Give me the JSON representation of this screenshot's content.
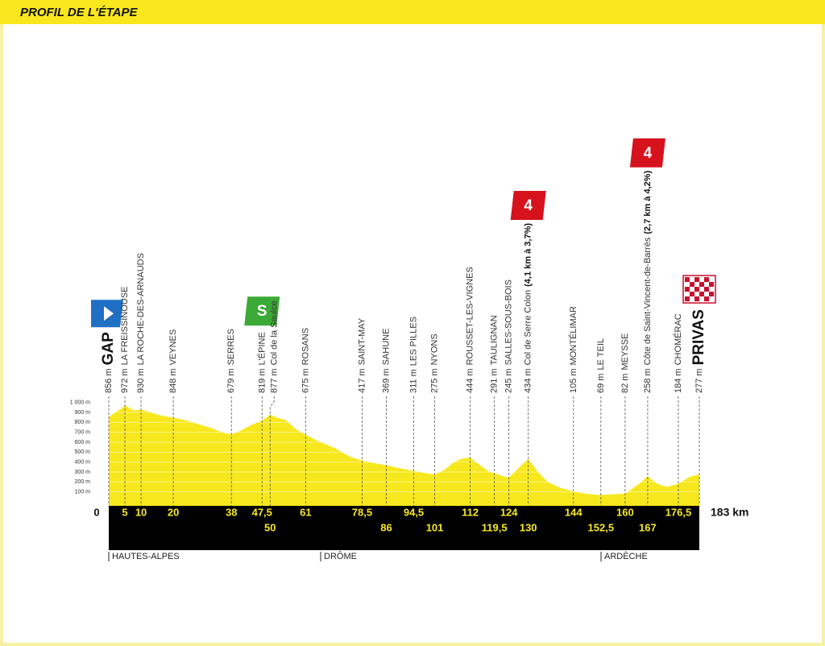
{
  "header": {
    "title": "PROFIL DE L'ÉTAPE"
  },
  "chart_data": {
    "type": "area",
    "color": "#f7e81e",
    "x": [
      0,
      2,
      4,
      5,
      6,
      8,
      10,
      13,
      16,
      20,
      24,
      28,
      32,
      35,
      38,
      41,
      44,
      47.5,
      50,
      52,
      55,
      58,
      61,
      65,
      70,
      75,
      78.5,
      82,
      86,
      90,
      94.5,
      98,
      101,
      104,
      107,
      110,
      112,
      115,
      118,
      119.5,
      122,
      124,
      127,
      130,
      133,
      136,
      140,
      144,
      148,
      152.5,
      156,
      160,
      163,
      165,
      167,
      170,
      173,
      176.5,
      180,
      183
    ],
    "values": [
      856,
      900,
      940,
      972,
      950,
      920,
      930,
      900,
      870,
      848,
      820,
      780,
      740,
      700,
      679,
      720,
      770,
      819,
      877,
      850,
      820,
      730,
      675,
      610,
      540,
      450,
      417,
      390,
      369,
      340,
      311,
      290,
      275,
      320,
      400,
      440,
      444,
      370,
      300,
      291,
      260,
      245,
      340,
      434,
      300,
      200,
      140,
      105,
      80,
      69,
      75,
      82,
      150,
      200,
      258,
      180,
      150,
      184,
      250,
      277
    ],
    "xlim": [
      0,
      183
    ],
    "ylim": [
      0,
      1000
    ],
    "yticks": [
      {
        "value": 100,
        "label": "100 m"
      },
      {
        "value": 200,
        "label": "200 m"
      },
      {
        "value": 300,
        "label": "300 m"
      },
      {
        "value": 400,
        "label": "400 m"
      },
      {
        "value": 500,
        "label": "500 m"
      },
      {
        "value": 600,
        "label": "600 m"
      },
      {
        "value": 700,
        "label": "700 m"
      },
      {
        "value": 800,
        "label": "800 m"
      },
      {
        "value": 900,
        "label": "900 m"
      },
      {
        "value": 1000,
        "label": "1 000 m"
      }
    ],
    "xticks": [
      0,
      5,
      10,
      20,
      38,
      {
        "value": 47.5,
        "label": "47,5"
      },
      50,
      61,
      {
        "value": 78.5,
        "label": "78,5"
      },
      86,
      {
        "value": 94.5,
        "label": "94,5"
      },
      101,
      112,
      {
        "value": 119.5,
        "label": "119,5"
      },
      124,
      130,
      144,
      {
        "value": 152.5,
        "label": "152,5"
      },
      160,
      167,
      {
        "value": 176.5,
        "label": "176,5"
      },
      {
        "value": 183,
        "label": "183 km"
      }
    ],
    "grid": true,
    "waypoints": {
      "x": [
        0,
        5,
        10,
        20,
        38,
        47.5,
        50,
        61,
        78.5,
        86,
        94.5,
        101,
        112,
        119.5,
        124,
        130,
        144,
        152.5,
        160,
        167,
        176.5,
        183
      ],
      "values": [
        856,
        972,
        930,
        848,
        679,
        819,
        877,
        675,
        417,
        369,
        311,
        275,
        444,
        291,
        245,
        434,
        105,
        69,
        82,
        258,
        184,
        277
      ],
      "value_labels": [
        "856 m",
        "972 m",
        "930 m",
        "848 m",
        "679 m",
        "819 m",
        "877 m",
        "675 m",
        "417 m",
        "369 m",
        "311 m",
        "275 m",
        "444 m",
        "291 m",
        "245 m",
        "434 m",
        "105 m",
        "69 m",
        "82 m",
        "258 m",
        "184 m",
        "277 m"
      ],
      "names": [
        "GAP",
        "LA FREISSINOUSE",
        "LA ROCHE-DES-ARNAUDS",
        "VEYNES",
        "SERRES",
        "L'ÉPINE",
        "Col de la Saulce",
        "ROSANS",
        "SAINT-MAY",
        "SAHUNE",
        "LES PILLES",
        "NYONS",
        "ROUSSET-LES-VIGNES",
        "TAULIGNAN",
        "SALLES-SOUS-BOIS",
        "Col de Serre Colon",
        "MONTÉLIMAR",
        "LE TEIL",
        "MEYSSE",
        "Côte de Saint-Vincent-de-Barrès",
        "CHOMÉRAC",
        "PRIVAS"
      ],
      "details": [
        null,
        null,
        null,
        null,
        null,
        null,
        null,
        null,
        null,
        null,
        null,
        null,
        null,
        null,
        null,
        "(4,1 km à 3,7%)",
        null,
        null,
        null,
        "(2,7 km à 4,2%)",
        null,
        null
      ],
      "badges": [
        null,
        null,
        null,
        null,
        null,
        "S",
        null,
        null,
        null,
        null,
        null,
        null,
        null,
        null,
        null,
        "4",
        null,
        null,
        null,
        "4",
        null,
        null
      ]
    },
    "regions": [
      "HAUTES-ALPES",
      "DRÔME",
      "ARDÈCHE"
    ]
  }
}
